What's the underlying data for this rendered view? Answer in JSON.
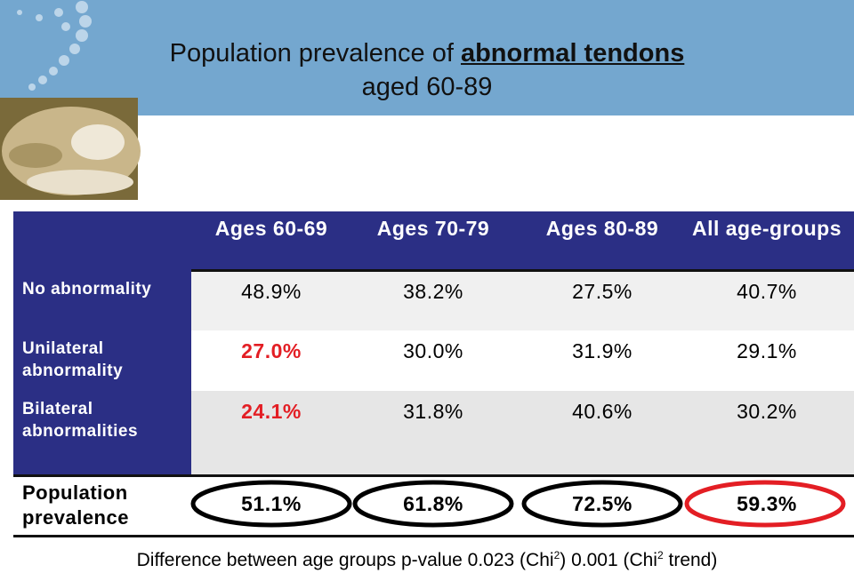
{
  "header": {
    "title_prefix": "Population prevalence of",
    "title_emphasis": "abnormal tendons",
    "title_line2": "aged 60-89"
  },
  "table": {
    "columns": [
      "Ages 60-69",
      "Ages 70-79",
      "Ages 80-89",
      "All age-groups"
    ],
    "rows": [
      {
        "label": "No abnormality",
        "cells": [
          "48.9%",
          "38.2%",
          "27.5%",
          "40.7%"
        ]
      },
      {
        "label": "Unilateral abnormality",
        "cells": [
          "27.0%",
          "30.0%",
          "31.9%",
          "29.1%"
        ]
      },
      {
        "label": "Bilateral abnormalities",
        "cells": [
          "24.1%",
          "31.8%",
          "40.6%",
          "30.2%"
        ]
      }
    ],
    "total": {
      "label": "Population prevalence",
      "cells": [
        "51.1%",
        "61.8%",
        "72.5%",
        "59.3%"
      ]
    }
  },
  "footnote": [
    "Difference between age groups p-value 0.023 (Chi",
    "2",
    ") 0.001 (Chi",
    "2",
    " trend)"
  ]
}
